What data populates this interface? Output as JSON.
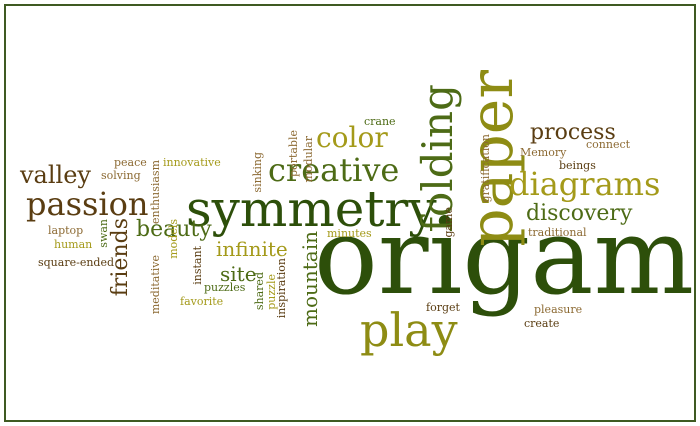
{
  "words": {
    "origami": "origami",
    "paper": "paper",
    "symmetry": "symmetry",
    "play": "play",
    "folding": "folding",
    "creative": "creative",
    "passion": "passion",
    "diagrams": "diagrams",
    "color": "color",
    "process": "process",
    "discovery": "discovery",
    "beauty": "beauty",
    "valley": "valley",
    "friends": "friends",
    "infinite": "infinite",
    "mountain": "mountain",
    "site": "site",
    "memory": "Memory",
    "connect": "connect",
    "beings": "beings",
    "traditional": "traditional",
    "gratification": "gratification",
    "game": "game",
    "minutes": "minutes",
    "crane": "crane",
    "modular": "modular",
    "portable": "portable",
    "sinking": "sinking",
    "innovative": "innovative",
    "enthusiasm": "enthusiasm",
    "peace": "peace",
    "solving": "solving",
    "laptop": "laptop",
    "human": "human",
    "swan": "swan",
    "square_ended": "square-ended",
    "meditative": "meditative",
    "models": "models",
    "instant": "instant",
    "puzzles": "puzzles",
    "favorite": "favorite",
    "shared": "shared",
    "puzzle": "puzzle",
    "inspiration": "inspiration",
    "forget": "forget",
    "pleasure": "pleasure",
    "create": "create"
  },
  "palette": {
    "dark_green": "#2d4f0a",
    "green": "#4d6b16",
    "olive": "#8e8c14",
    "yellow_olive": "#a49a1a",
    "brown": "#5a3d12",
    "light_brown": "#8c6a33",
    "border": "#3f5a22"
  }
}
